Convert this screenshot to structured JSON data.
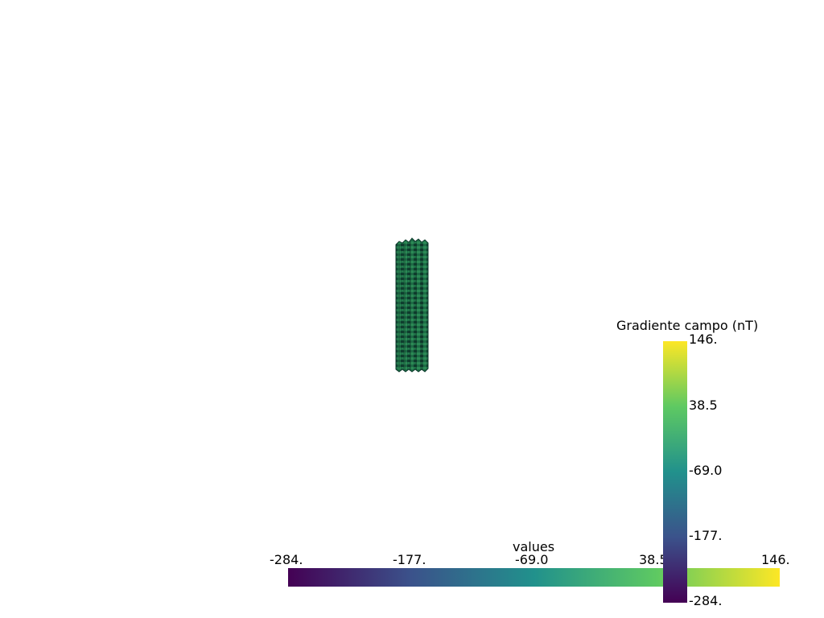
{
  "scene": {
    "object": "mesh-volume",
    "colors": {
      "mesh_dark": "#0f3d2e",
      "mesh_mid": "#1d6b45",
      "mesh_light": "#2b8a55",
      "background": "#ffffff"
    }
  },
  "colormap": {
    "name": "viridis",
    "stops": [
      "#440154",
      "#3b528b",
      "#21918c",
      "#5ec962",
      "#fde725"
    ]
  },
  "horizontal_bar": {
    "title": "values",
    "ticks": [
      "-284.",
      "-177.",
      "-69.0",
      "38.5",
      "146."
    ],
    "range": [
      -284,
      146
    ]
  },
  "vertical_bar": {
    "title": "Gradiente campo (nT)",
    "ticks": [
      "146.",
      "38.5",
      "-69.0",
      "-177.",
      "-284."
    ],
    "range": [
      -284,
      146
    ]
  }
}
